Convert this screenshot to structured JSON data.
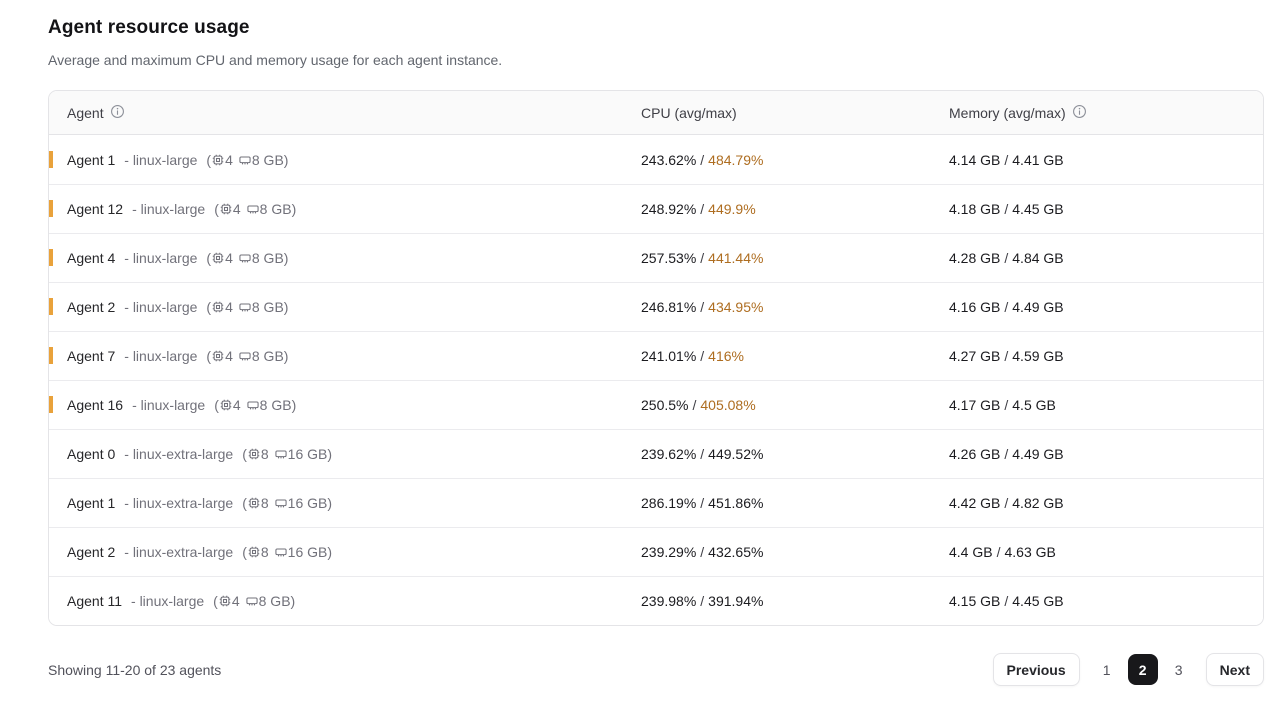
{
  "page": {
    "title": "Agent resource usage",
    "subtitle": "Average and maximum CPU and memory usage for each agent instance."
  },
  "table": {
    "columns": {
      "agent": "Agent",
      "cpu": "CPU (avg/max)",
      "memory": "Memory (avg/max)"
    },
    "icons": {
      "agent_header": "info-icon",
      "memory_header": "info-icon",
      "cpu_spec": "cpu-chip-icon",
      "ram_spec": "ram-stick-icon"
    },
    "separator": "/",
    "paren_open": "(",
    "paren_close": ")",
    "rows": [
      {
        "name": "Agent 1",
        "instance": "- linux-large",
        "cpus": "4",
        "ram": "8 GB",
        "cpu_avg": "243.62%",
        "cpu_max": "484.79%",
        "mem_avg": "4.14 GB",
        "mem_max": "4.41 GB",
        "highlight": true
      },
      {
        "name": "Agent 12",
        "instance": "- linux-large",
        "cpus": "4",
        "ram": "8 GB",
        "cpu_avg": "248.92%",
        "cpu_max": "449.9%",
        "mem_avg": "4.18 GB",
        "mem_max": "4.45 GB",
        "highlight": true
      },
      {
        "name": "Agent 4",
        "instance": "- linux-large",
        "cpus": "4",
        "ram": "8 GB",
        "cpu_avg": "257.53%",
        "cpu_max": "441.44%",
        "mem_avg": "4.28 GB",
        "mem_max": "4.84 GB",
        "highlight": true
      },
      {
        "name": "Agent 2",
        "instance": "- linux-large",
        "cpus": "4",
        "ram": "8 GB",
        "cpu_avg": "246.81%",
        "cpu_max": "434.95%",
        "mem_avg": "4.16 GB",
        "mem_max": "4.49 GB",
        "highlight": true
      },
      {
        "name": "Agent 7",
        "instance": "- linux-large",
        "cpus": "4",
        "ram": "8 GB",
        "cpu_avg": "241.01%",
        "cpu_max": "416%",
        "mem_avg": "4.27 GB",
        "mem_max": "4.59 GB",
        "highlight": true
      },
      {
        "name": "Agent 16",
        "instance": "- linux-large",
        "cpus": "4",
        "ram": "8 GB",
        "cpu_avg": "250.5%",
        "cpu_max": "405.08%",
        "mem_avg": "4.17 GB",
        "mem_max": "4.5 GB",
        "highlight": true
      },
      {
        "name": "Agent 0",
        "instance": "- linux-extra-large",
        "cpus": "8",
        "ram": "16 GB",
        "cpu_avg": "239.62%",
        "cpu_max": "449.52%",
        "mem_avg": "4.26 GB",
        "mem_max": "4.49 GB",
        "highlight": false
      },
      {
        "name": "Agent 1",
        "instance": "- linux-extra-large",
        "cpus": "8",
        "ram": "16 GB",
        "cpu_avg": "286.19%",
        "cpu_max": "451.86%",
        "mem_avg": "4.42 GB",
        "mem_max": "4.82 GB",
        "highlight": false
      },
      {
        "name": "Agent 2",
        "instance": "- linux-extra-large",
        "cpus": "8",
        "ram": "16 GB",
        "cpu_avg": "239.29%",
        "cpu_max": "432.65%",
        "mem_avg": "4.4 GB",
        "mem_max": "4.63 GB",
        "highlight": false
      },
      {
        "name": "Agent 11",
        "instance": "- linux-large",
        "cpus": "4",
        "ram": "8 GB",
        "cpu_avg": "239.98%",
        "cpu_max": "391.94%",
        "mem_avg": "4.15 GB",
        "mem_max": "4.45 GB",
        "highlight": false
      }
    ]
  },
  "footer": {
    "summary": "Showing 11-20 of 23 agents",
    "previous_label": "Previous",
    "next_label": "Next",
    "pages": [
      "1",
      "2",
      "3"
    ],
    "active_page": "2"
  },
  "colors": {
    "warning_bar": "#E9A23B",
    "cpu_max_warning": "#AE6D20",
    "active_page_bg": "#18181B",
    "header_bg": "#FAFAFA",
    "border": "#E4E4E7"
  }
}
